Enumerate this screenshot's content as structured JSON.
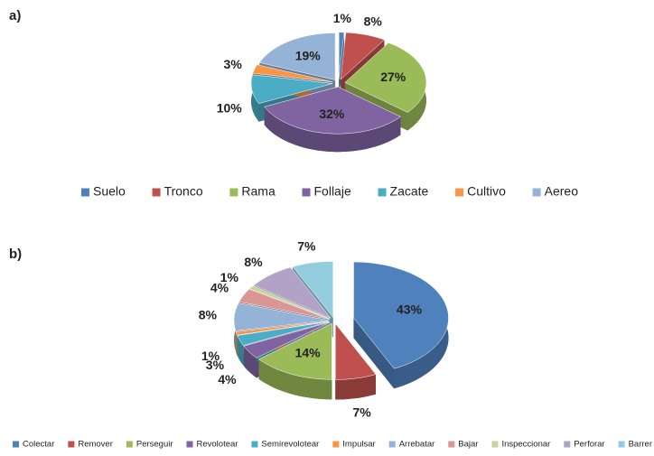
{
  "chart_data": [
    {
      "type": "pie",
      "label": "a)",
      "categories": [
        "Suelo",
        "Tronco",
        "Rama",
        "Follaje",
        "Zacate",
        "Cultivo",
        "Aereo"
      ],
      "values": [
        1,
        8,
        27,
        32,
        10,
        3,
        19
      ],
      "value_labels": [
        "1%",
        "8%",
        "27%",
        "32%",
        "10%",
        "3%",
        "19%"
      ],
      "colors": [
        "#4f81bd",
        "#c0504d",
        "#9bbb59",
        "#8064a2",
        "#4bacc6",
        "#f79646",
        "#95b3d7"
      ],
      "legend": "bottom"
    },
    {
      "type": "pie",
      "label": "b)",
      "categories": [
        "Colectar",
        "Remover",
        "Perseguir",
        "Revolotear",
        "Semirevolotear",
        "Impulsar",
        "Arrebatar",
        "Bajar",
        "Inspeccionar",
        "Perforar",
        "Barrer"
      ],
      "values": [
        43,
        7,
        14,
        4,
        3,
        1,
        8,
        4,
        1,
        8,
        7
      ],
      "value_labels": [
        "43%",
        "7%",
        "14%",
        "4%",
        "3%",
        "1%",
        "8%",
        "4%",
        "1%",
        "8%",
        "7%"
      ],
      "colors": [
        "#4f81bd",
        "#c0504d",
        "#9bbb59",
        "#8064a2",
        "#4bacc6",
        "#f79646",
        "#95b3d7",
        "#d99694",
        "#c3d69b",
        "#b3a2c7",
        "#93cddd"
      ],
      "legend": "bottom"
    }
  ]
}
